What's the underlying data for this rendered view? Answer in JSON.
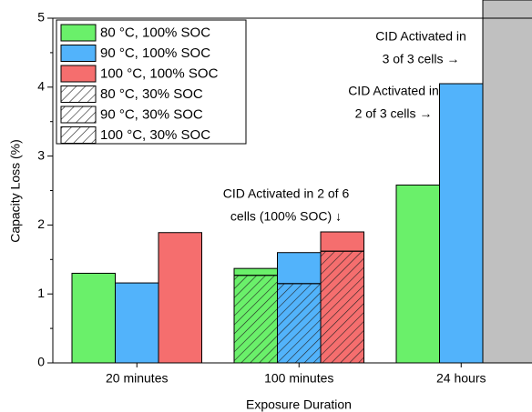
{
  "chart_data": {
    "type": "bar",
    "x_label": "Exposure Duration",
    "y_label": "Capacity Loss (%)",
    "categories": [
      "20 minutes",
      "100 minutes",
      "24 hours"
    ],
    "series": [
      {
        "name": "80 °C, 100% SOC",
        "color": "#6af06a",
        "hatch": false,
        "values": [
          1.3,
          1.37,
          2.58
        ]
      },
      {
        "name": "90 °C, 100% SOC",
        "color": "#52b3fb",
        "hatch": false,
        "values": [
          1.16,
          1.6,
          4.05
        ]
      },
      {
        "name": "100 °C, 100% SOC",
        "color": "#f56e6e",
        "hatch": false,
        "values": [
          1.89,
          1.9,
          null
        ]
      },
      {
        "name": "80 °C, 30% SOC",
        "color": "#6af06a",
        "hatch": true,
        "values": [
          null,
          1.27,
          null
        ]
      },
      {
        "name": "90 °C, 30% SOC",
        "color": "#52b3fb",
        "hatch": true,
        "values": [
          null,
          1.15,
          null
        ]
      },
      {
        "name": "100 °C, 30% SOC",
        "color": "#f56e6e",
        "hatch": true,
        "values": [
          null,
          1.62,
          null
        ]
      }
    ],
    "cid_bar_color": "#c0c0c0",
    "ylim": [
      0,
      5
    ],
    "yticks": [
      0,
      1,
      2,
      3,
      4,
      5
    ],
    "annotations": [
      {
        "lines": [
          "CID Activated in 2 of 6",
          "cells (100% SOC) ↓"
        ]
      },
      {
        "lines": [
          "CID Activated in",
          "2 of 3 cells →"
        ]
      },
      {
        "lines": [
          "CID Activated in",
          "3 of 3 cells →"
        ]
      }
    ]
  }
}
